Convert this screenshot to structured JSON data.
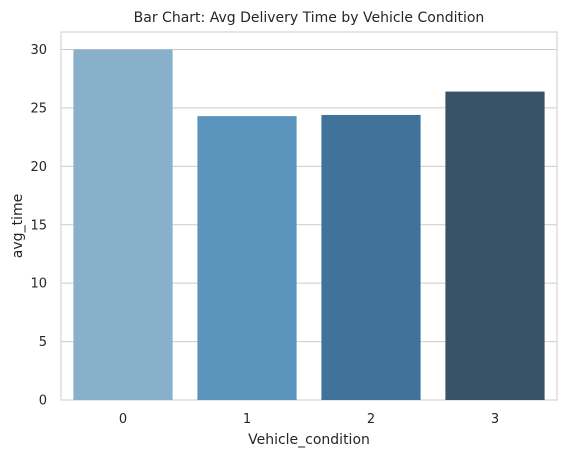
{
  "chart_data": {
    "type": "bar",
    "title": "Bar Chart: Avg Delivery Time by Vehicle Condition",
    "xlabel": "Vehicle_condition",
    "ylabel": "avg_time",
    "categories": [
      "0",
      "1",
      "2",
      "3"
    ],
    "values": [
      30.0,
      24.3,
      24.4,
      26.4
    ],
    "ylim": [
      0,
      31.5
    ],
    "yticks": [
      "0",
      "5",
      "10",
      "15",
      "20",
      "25",
      "30"
    ],
    "grid": true,
    "legend": "none"
  },
  "colors": {
    "bars": [
      "#89b0cb",
      "#5b94bd",
      "#41739a",
      "#3a5268"
    ],
    "grid": "#cccccc",
    "text": "#262626",
    "background": "#ffffff"
  }
}
